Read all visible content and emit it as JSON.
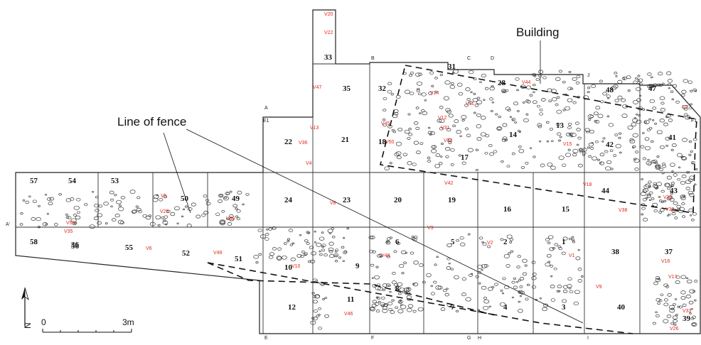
{
  "labels": {
    "building": "Building",
    "fence": "Line of fence"
  },
  "scale_bar": {
    "start": "0",
    "end": "3m"
  },
  "north_label": "N",
  "colors": {
    "line": "#222222",
    "find": "#e0261b",
    "stone": "#3a3a3a"
  },
  "trenches": [
    "1",
    "2",
    "3",
    "4",
    "5",
    "6",
    "7",
    "8",
    "9",
    "10",
    "11",
    "12",
    "13",
    "14",
    "15",
    "16",
    "17",
    "18",
    "19",
    "20",
    "21",
    "22",
    "23",
    "24",
    "28",
    "31",
    "32",
    "33",
    "35",
    "36",
    "37",
    "38",
    "39",
    "40",
    "41",
    "42",
    "43",
    "44",
    "47",
    "48",
    "49",
    "50",
    "51",
    "52",
    "53",
    "54",
    "55",
    "56",
    "57",
    "58"
  ],
  "finds": [
    "V1",
    "V2",
    "V3",
    "V4",
    "V5",
    "V6",
    "V7",
    "V8",
    "V9",
    "V10",
    "V11",
    "V12",
    "V13",
    "V14",
    "V15",
    "V16",
    "V17",
    "V18",
    "V19",
    "V20",
    "V22",
    "V25",
    "V26",
    "V30",
    "V31",
    "V33",
    "V34",
    "V35",
    "V36",
    "V38",
    "V39",
    "V42",
    "V44",
    "V45",
    "V46",
    "V47",
    "V48",
    "V49",
    "V50",
    "V55"
  ],
  "grid_tags": [
    "A'",
    "E",
    "F",
    "G",
    "H",
    "I",
    "J",
    "A",
    "B",
    "C",
    "D",
    "E1",
    "F1"
  ]
}
